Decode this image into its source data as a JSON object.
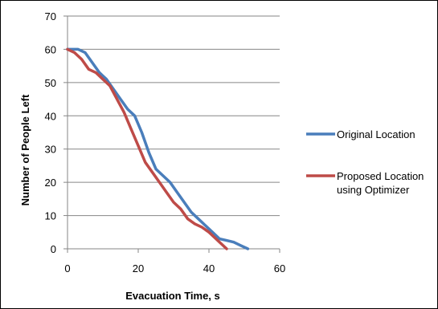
{
  "chart_data": {
    "type": "line",
    "title": "",
    "xlabel": "Evacuation Time, s",
    "ylabel": "Number of People Left",
    "xlim": [
      0,
      60
    ],
    "ylim": [
      0,
      70
    ],
    "xticks": [
      0,
      20,
      40,
      60
    ],
    "yticks": [
      0,
      10,
      20,
      30,
      40,
      50,
      60,
      70
    ],
    "grid": "horizontal",
    "legend_position": "right",
    "series": [
      {
        "name": "Original Location",
        "color": "#4A7EBB",
        "points": [
          [
            0,
            60
          ],
          [
            3,
            60
          ],
          [
            5,
            59
          ],
          [
            7,
            56
          ],
          [
            9,
            53
          ],
          [
            11,
            51
          ],
          [
            13,
            48
          ],
          [
            15,
            45
          ],
          [
            17,
            42
          ],
          [
            19,
            40
          ],
          [
            21,
            35
          ],
          [
            23,
            29
          ],
          [
            25,
            24
          ],
          [
            27,
            22
          ],
          [
            29,
            20
          ],
          [
            31,
            17
          ],
          [
            33,
            14
          ],
          [
            35,
            11
          ],
          [
            37,
            9
          ],
          [
            39,
            7
          ],
          [
            41,
            5
          ],
          [
            43,
            3
          ],
          [
            45,
            2.5
          ],
          [
            47,
            2
          ],
          [
            49,
            1
          ],
          [
            51,
            0
          ]
        ]
      },
      {
        "name": "Proposed Location using Optimizer",
        "name_lines": [
          "Proposed Location",
          "using Optimizer"
        ],
        "color": "#BE4B48",
        "points": [
          [
            0,
            60
          ],
          [
            2,
            59
          ],
          [
            4,
            57
          ],
          [
            6,
            54
          ],
          [
            8,
            53
          ],
          [
            10,
            51
          ],
          [
            12,
            49
          ],
          [
            14,
            45
          ],
          [
            16,
            41
          ],
          [
            18,
            36
          ],
          [
            20,
            31
          ],
          [
            22,
            26
          ],
          [
            24,
            23
          ],
          [
            26,
            20
          ],
          [
            28,
            17
          ],
          [
            30,
            14
          ],
          [
            32,
            12
          ],
          [
            34,
            9
          ],
          [
            36,
            7.5
          ],
          [
            38,
            6.5
          ],
          [
            40,
            5
          ],
          [
            42,
            3
          ],
          [
            44,
            1
          ],
          [
            45,
            0
          ]
        ]
      }
    ]
  }
}
